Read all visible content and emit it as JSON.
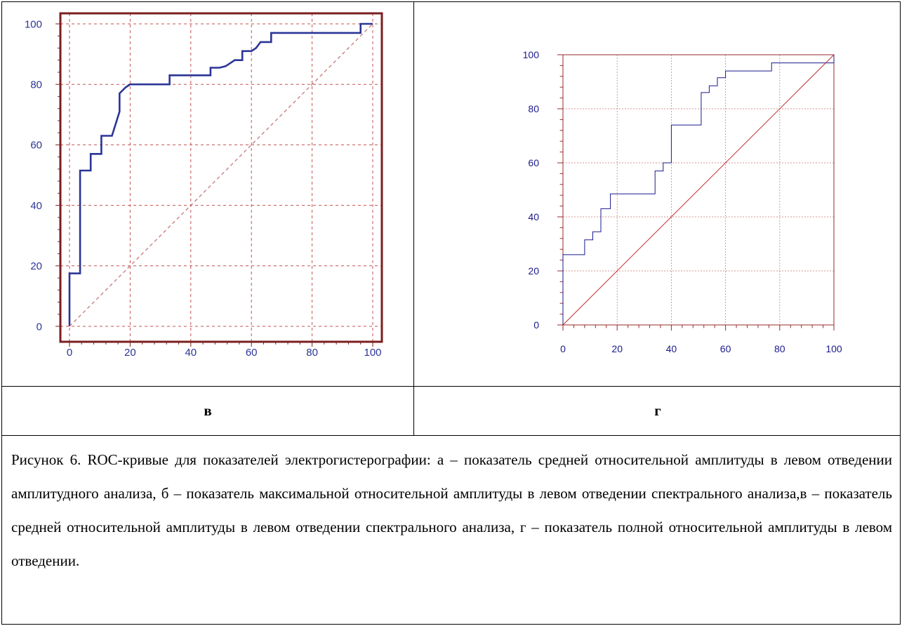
{
  "chart_data": [
    {
      "type": "line",
      "panel_label": "в",
      "xlim": [
        0,
        100
      ],
      "ylim": [
        0,
        100
      ],
      "xticks": [
        0,
        20,
        40,
        60,
        80,
        100
      ],
      "yticks": [
        0,
        20,
        40,
        60,
        80,
        100
      ],
      "grid": true,
      "colors": {
        "curve": "#2b3595",
        "diagonal": "#c87878",
        "frame": "#7b1f1f",
        "grid": "#c45050",
        "tick_label": "#2b3595"
      },
      "series": [
        {
          "style": "step",
          "x": [
            0,
            0,
            3.5,
            3.5,
            7,
            7,
            10.5,
            10.5,
            14,
            16.5,
            16.5,
            18.5,
            20,
            33,
            33,
            46.5,
            46.5,
            49.5,
            51.5,
            54.5,
            57,
            57,
            60,
            61.5,
            63,
            66.5,
            66.5,
            96,
            96,
            100
          ],
          "y": [
            0,
            17.5,
            17.5,
            51.5,
            51.5,
            57,
            57,
            63,
            63,
            71,
            77,
            79,
            80,
            80,
            83,
            83,
            85.5,
            85.5,
            86,
            88,
            88,
            91,
            91,
            92,
            94,
            94,
            97,
            97,
            100,
            100
          ]
        },
        {
          "style": "diagonal",
          "x": [
            0,
            100
          ],
          "y": [
            0,
            100
          ]
        }
      ]
    },
    {
      "type": "line",
      "panel_label": "г",
      "xlim": [
        0,
        100
      ],
      "ylim": [
        0,
        100
      ],
      "xticks": [
        0,
        20,
        40,
        60,
        80,
        100
      ],
      "yticks": [
        0,
        20,
        40,
        60,
        80,
        100
      ],
      "grid": true,
      "colors": {
        "curve": "#1a1a8c",
        "diagonal": "#c03030",
        "frame": "#9a2a2a",
        "grid": "#c87070",
        "tick_label": "#1a1a8c"
      },
      "series": [
        {
          "style": "step",
          "x": [
            0,
            0,
            8,
            8,
            11,
            11,
            14,
            14,
            17.5,
            17.5,
            34,
            34,
            37,
            37,
            40,
            40,
            51,
            51,
            54,
            54,
            57,
            57,
            60,
            60,
            77,
            77,
            100,
            100
          ],
          "y": [
            0,
            26,
            26,
            31.5,
            31.5,
            34.5,
            34.5,
            43,
            43,
            48.5,
            48.5,
            57,
            57,
            60,
            60,
            74,
            74,
            86,
            86,
            88.5,
            88.5,
            91.5,
            91.5,
            94,
            94,
            97,
            97,
            100
          ]
        },
        {
          "style": "diagonal",
          "x": [
            0,
            100
          ],
          "y": [
            0,
            100
          ]
        }
      ]
    }
  ],
  "caption": "Рисунок 6. ROC-кривые для показателей электрогистерографии: а – показатель средней относительной амплитуды в левом отведении амплитудного анализа, б – показатель максимальной относительной амплитуды в левом отведении спектрального анализа,в – показатель средней относительной амплитуды в левом отведении спектрального анализа, г – показатель полной относительной амплитуды в левом отведении."
}
